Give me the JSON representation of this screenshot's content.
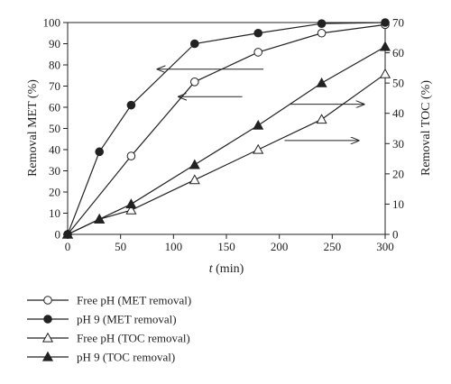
{
  "chart_data": {
    "type": "line",
    "title": "",
    "xlabel_italic": "t",
    "xlabel_rest": " (min)",
    "ylabel_left": "Removal MET (%)",
    "ylabel_right": "Removal TOC (%)",
    "xlim": [
      0,
      300
    ],
    "ylim_left": [
      0,
      100
    ],
    "ylim_right": [
      0,
      70
    ],
    "x_ticks": [
      "0",
      "50",
      "100",
      "150",
      "200",
      "250",
      "300"
    ],
    "y_left_ticks": [
      "0",
      "10",
      "20",
      "30",
      "40",
      "50",
      "60",
      "70",
      "80",
      "90",
      "100"
    ],
    "y_right_ticks": [
      "0",
      "10",
      "20",
      "30",
      "40",
      "50",
      "60",
      "70"
    ],
    "grid": false,
    "legend_position": "below",
    "series": [
      {
        "name": "Free pH (MET removal)",
        "axis": "left",
        "marker": "circle-open",
        "x": [
          0,
          60,
          120,
          180,
          240,
          300
        ],
        "y": [
          0,
          37,
          72,
          86,
          95,
          99
        ]
      },
      {
        "name": "pH 9 (MET removal)",
        "axis": "left",
        "marker": "circle-filled",
        "x": [
          0,
          30,
          60,
          120,
          180,
          240,
          300
        ],
        "y": [
          0,
          39,
          61,
          90,
          95,
          99.5,
          100
        ]
      },
      {
        "name": "Free pH (TOC removal)",
        "axis": "right",
        "marker": "triangle-open",
        "x": [
          0,
          30,
          60,
          120,
          180,
          240,
          300
        ],
        "y": [
          0,
          5,
          8,
          18,
          28,
          38,
          53
        ]
      },
      {
        "name": "pH 9 (TOC removal)",
        "axis": "right",
        "marker": "triangle-filled",
        "x": [
          0,
          30,
          60,
          120,
          180,
          240,
          300
        ],
        "y": [
          0,
          5,
          10,
          23,
          36,
          50,
          62
        ]
      }
    ],
    "annotations": [
      {
        "type": "arrow",
        "direction": "left",
        "from": [
          185,
          78
        ],
        "to": [
          85,
          78
        ],
        "axis": "left"
      },
      {
        "type": "arrow",
        "direction": "left",
        "from": [
          165,
          65
        ],
        "to": [
          105,
          65
        ],
        "axis": "left"
      },
      {
        "type": "arrow",
        "direction": "right",
        "from": [
          210,
          43
        ],
        "to": [
          280,
          43
        ],
        "axis": "right"
      },
      {
        "type": "arrow",
        "direction": "right",
        "from": [
          205,
          31
        ],
        "to": [
          275,
          31
        ],
        "axis": "right"
      }
    ]
  }
}
